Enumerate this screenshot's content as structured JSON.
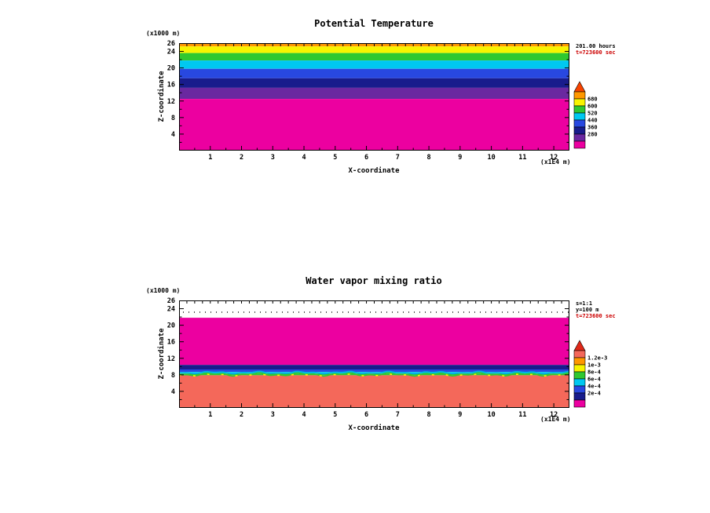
{
  "page": {
    "background": "#ffffff"
  },
  "chart_data": [
    {
      "type": "heatmap",
      "variant": "filled-contour-cross-section",
      "title": "Potential Temperature",
      "xlabel": "X-coordinate",
      "ylabel": "Z-coordinate",
      "x_unit_label": "(x1E4 m)",
      "y_unit_label": "(x1000 m)",
      "xlim": [
        0,
        12.5
      ],
      "ylim": [
        0,
        26
      ],
      "x_ticks": [
        "1",
        "2",
        "3",
        "4",
        "5",
        "6",
        "7",
        "8",
        "9",
        "10",
        "11",
        "12"
      ],
      "y_ticks": [
        26,
        24,
        20,
        16,
        12,
        8,
        4
      ],
      "annotations": [
        {
          "text": "201.00 hours",
          "color": "#000000"
        },
        {
          "text": "t=723600 sec",
          "color": "#cc0000"
        }
      ],
      "bands": [
        {
          "color": "#ff9800",
          "z_from": 25.2,
          "z_to": 26.0
        },
        {
          "color": "#f8f400",
          "z_from": 23.6,
          "z_to": 25.2
        },
        {
          "color": "#30c830",
          "z_from": 21.8,
          "z_to": 23.6
        },
        {
          "color": "#00c8f0",
          "z_from": 19.8,
          "z_to": 21.8
        },
        {
          "color": "#2848e0",
          "z_from": 17.5,
          "z_to": 19.8
        },
        {
          "color": "#181c8c",
          "z_from": 15.2,
          "z_to": 17.5
        },
        {
          "color": "#6a28a0",
          "z_from": 12.5,
          "z_to": 15.2
        },
        {
          "color": "#ec00a0",
          "z_from": 0.0,
          "z_to": 12.5
        }
      ],
      "colorbar": {
        "pennant_color": "#f84400",
        "cell_colors": [
          "#ff9800",
          "#f8f400",
          "#30c830",
          "#00c8f0",
          "#2848e0",
          "#181c8c",
          "#6a28a0",
          "#ec00a0"
        ],
        "labels": [
          "680",
          "600",
          "520",
          "440",
          "360",
          "280"
        ]
      }
    },
    {
      "type": "heatmap",
      "variant": "filled-contour-cross-section",
      "title": "Water vapor mixing ratio",
      "xlabel": "X-coordinate",
      "ylabel": "Z-coordinate",
      "x_unit_label": "(x1E4 m)",
      "y_unit_label": "(x1000 m)",
      "xlim": [
        0,
        12.5
      ],
      "ylim": [
        0,
        26
      ],
      "x_ticks": [
        "1",
        "2",
        "3",
        "4",
        "5",
        "6",
        "7",
        "8",
        "9",
        "10",
        "11",
        "12"
      ],
      "y_ticks": [
        26,
        24,
        20,
        16,
        12,
        8,
        4
      ],
      "annotations": [
        {
          "text": "s=1:1",
          "color": "#000000"
        },
        {
          "text": "y=100 m",
          "color": "#000000"
        },
        {
          "text": "t=723600 sec",
          "color": "#cc0000"
        }
      ],
      "inner_dotted_line_z": 23.3,
      "bands": [
        {
          "color": "#ffffff",
          "z_from": 21.8,
          "z_to": 26.0
        },
        {
          "color": "#ec00a0",
          "z_from": 10.4,
          "z_to": 21.8
        },
        {
          "color": "#181c8c",
          "z_from": 9.3,
          "z_to": 10.4
        },
        {
          "color": "#2848e0",
          "z_from": 8.7,
          "z_to": 9.3
        },
        {
          "color": "#00c8f0",
          "z_from": 8.3,
          "z_to": 8.7
        },
        {
          "color": "#30c830",
          "z_from": 7.9,
          "z_to": 8.3
        },
        {
          "color": "#f4685a",
          "z_from": 0.0,
          "z_to": 7.9
        }
      ],
      "squiggle_lines": [
        {
          "color": "#00b0e0",
          "z": 8.55,
          "amplitude": 1.0
        },
        {
          "color": "#30c830",
          "z": 8.1,
          "amplitude": 1.3
        },
        {
          "color": "#f8f400",
          "z": 7.95,
          "amplitude": 0.8,
          "dash": "3 15"
        }
      ],
      "colorbar": {
        "pennant_color": "#e02818",
        "cell_colors": [
          "#f4685a",
          "#ff9800",
          "#f8f400",
          "#30c830",
          "#00c8f0",
          "#2848e0",
          "#181c8c",
          "#ec00a0"
        ],
        "labels": [
          "1.2e-3",
          "1e-3",
          "8e-4",
          "6e-4",
          "4e-4",
          "2e-4"
        ]
      }
    }
  ]
}
